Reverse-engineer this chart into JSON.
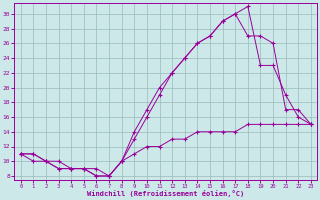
{
  "xlabel": "Windchill (Refroidissement éolien,°C)",
  "xlim": [
    -0.5,
    23.5
  ],
  "ylim": [
    7.5,
    31.5
  ],
  "xticks": [
    0,
    1,
    2,
    3,
    4,
    5,
    6,
    7,
    8,
    9,
    10,
    11,
    12,
    13,
    14,
    15,
    16,
    17,
    18,
    19,
    20,
    21,
    22,
    23
  ],
  "yticks": [
    8,
    10,
    12,
    14,
    16,
    18,
    20,
    22,
    24,
    26,
    28,
    30
  ],
  "background_color": "#cce8e8",
  "line_color": "#990099",
  "grid_color": "#99bbbb",
  "line1_x": [
    0,
    1,
    2,
    3,
    4,
    5,
    6,
    7,
    8,
    9,
    10,
    11,
    12,
    13,
    14,
    15,
    16,
    17,
    18,
    19,
    20,
    21,
    22,
    23
  ],
  "line1_y": [
    11,
    10,
    10,
    9,
    9,
    9,
    8,
    8,
    10,
    11,
    12,
    12,
    13,
    13,
    14,
    14,
    14,
    14,
    15,
    15,
    15,
    15,
    15,
    15
  ],
  "line2_x": [
    0,
    1,
    2,
    3,
    4,
    5,
    6,
    7,
    8,
    9,
    10,
    11,
    12,
    13,
    14,
    15,
    16,
    17,
    18,
    19,
    20,
    21,
    22,
    23
  ],
  "line2_y": [
    11,
    11,
    10,
    10,
    9,
    9,
    9,
    8,
    10,
    14,
    17,
    20,
    22,
    24,
    26,
    27,
    29,
    30,
    31,
    23,
    23,
    19,
    16,
    15
  ],
  "line3_x": [
    0,
    1,
    2,
    3,
    4,
    5,
    6,
    7,
    8,
    9,
    10,
    11,
    12,
    13,
    14,
    15,
    16,
    17,
    18,
    19,
    20,
    21,
    22,
    23
  ],
  "line3_y": [
    11,
    11,
    10,
    9,
    9,
    9,
    8,
    8,
    10,
    13,
    16,
    19,
    22,
    24,
    26,
    27,
    29,
    30,
    27,
    27,
    26,
    17,
    17,
    15
  ]
}
